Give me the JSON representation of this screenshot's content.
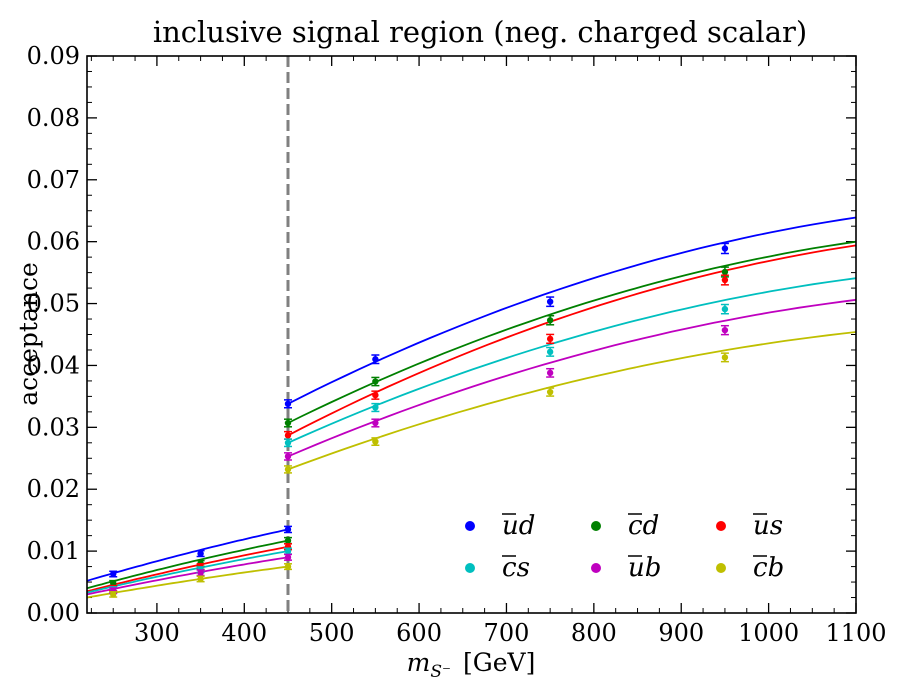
{
  "chart_data": {
    "type": "scatter",
    "title": "inclusive signal region (neg. charged scalar)",
    "xlabel_main": "m",
    "xlabel_sub": "S⁻",
    "xlabel_unit": "[GeV]",
    "ylabel": "acceptance",
    "xlim": [
      220,
      1100
    ],
    "ylim": [
      0,
      0.09
    ],
    "xticks": [
      300,
      400,
      500,
      600,
      700,
      800,
      900,
      1000,
      1100
    ],
    "yticks": [
      0.0,
      0.01,
      0.02,
      0.03,
      0.04,
      0.05,
      0.06,
      0.07,
      0.08,
      0.09
    ],
    "ytick_labels": [
      "0.00",
      "0.01",
      "0.02",
      "0.03",
      "0.04",
      "0.05",
      "0.06",
      "0.07",
      "0.08",
      "0.09"
    ],
    "threshold_line_x": 450,
    "x": [
      250,
      350,
      450,
      450,
      550,
      750,
      950
    ],
    "series": [
      {
        "name": "ūd",
        "label_base": "u",
        "label_rest": "d",
        "color": "#0000ff",
        "values": [
          0.0063,
          0.0096,
          0.0135,
          0.0338,
          0.041,
          0.0503,
          0.0589
        ],
        "fit_low": [
          0.0052,
          0.0135
        ],
        "fit_high": [
          0.0338,
          0.0639
        ]
      },
      {
        "name": "c̄d",
        "label_base": "c",
        "label_rest": "d",
        "color": "#008000",
        "values": [
          0.0048,
          0.008,
          0.0117,
          0.0307,
          0.0374,
          0.0473,
          0.0551
        ],
        "fit_low": [
          0.004,
          0.0117
        ],
        "fit_high": [
          0.0307,
          0.06
        ]
      },
      {
        "name": "ūs",
        "label_base": "u",
        "label_rest": "s",
        "color": "#ff0000",
        "values": [
          0.004,
          0.0075,
          0.0107,
          0.0287,
          0.0352,
          0.0443,
          0.0538
        ],
        "fit_low": [
          0.0035,
          0.0107
        ],
        "fit_high": [
          0.0287,
          0.0594
        ]
      },
      {
        "name": "c̄s",
        "label_base": "c",
        "label_rest": "s",
        "color": "#00bfbf",
        "values": [
          0.0038,
          0.007,
          0.01,
          0.0275,
          0.0332,
          0.0422,
          0.0491
        ],
        "fit_low": [
          0.0033,
          0.01
        ],
        "fit_high": [
          0.0275,
          0.0541
        ]
      },
      {
        "name": "ūb",
        "label_base": "u",
        "label_rest": "b",
        "color": "#bf00bf",
        "values": [
          0.0036,
          0.0065,
          0.009,
          0.0253,
          0.0307,
          0.0388,
          0.0457
        ],
        "fit_low": [
          0.003,
          0.009
        ],
        "fit_high": [
          0.0253,
          0.0506
        ]
      },
      {
        "name": "c̄b",
        "label_base": "c",
        "label_rest": "b",
        "color": "#bfbf00",
        "values": [
          0.003,
          0.0055,
          0.0075,
          0.0232,
          0.0277,
          0.0357,
          0.0413
        ],
        "fit_low": [
          0.0025,
          0.0075
        ],
        "fit_high": [
          0.0232,
          0.0454
        ]
      }
    ],
    "legend_placement": "lower-right"
  }
}
